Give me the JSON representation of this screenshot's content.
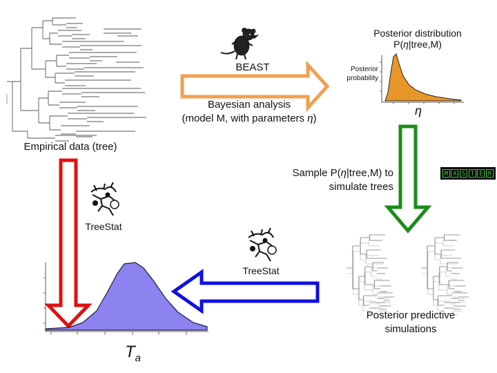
{
  "labels": {
    "beast": "BEAST",
    "bayesian_line1": "Bayesian analysis",
    "bayesian_line2_pre": "(model M, with parameters ",
    "bayesian_line2_sym": "η",
    "bayesian_line2_post": ")",
    "posterior_title_line1": "Posterior distribution",
    "posterior_title_line2_pre": "P(",
    "posterior_title_line2_sym": "η",
    "posterior_title_line2_post": "|tree,M)",
    "posterior_ylabel_line1": "Posterior",
    "posterior_ylabel_line2": "probability",
    "posterior_xlabel": "η",
    "empirical": "Empirical data (tree)",
    "sample_line1_pre": "Sample P(",
    "sample_line1_sym": "η",
    "sample_line1_post": "|tree,M) to",
    "sample_line2": "simulate trees",
    "master_letters": [
      "M",
      "A",
      "S",
      "T",
      "E",
      "R"
    ],
    "treestat_left": "TreeStat",
    "treestat_mid": "TreeStat",
    "posterior_sims_line1": "Posterior predictive",
    "posterior_sims_line2": "simulations",
    "ta_main": "T",
    "ta_sub": "a"
  },
  "colors": {
    "beast_arrow": "#f0a050",
    "sample_arrow": "#1a8c1a",
    "treestat_arrow_left": "#e01010",
    "treestat_arrow_mid": "#1010e0",
    "posterior_fill": "#e8962a",
    "ta_fill": "#8c82f0"
  },
  "icons": [
    "rat-icon",
    "treestat-icon",
    "master-logo"
  ]
}
